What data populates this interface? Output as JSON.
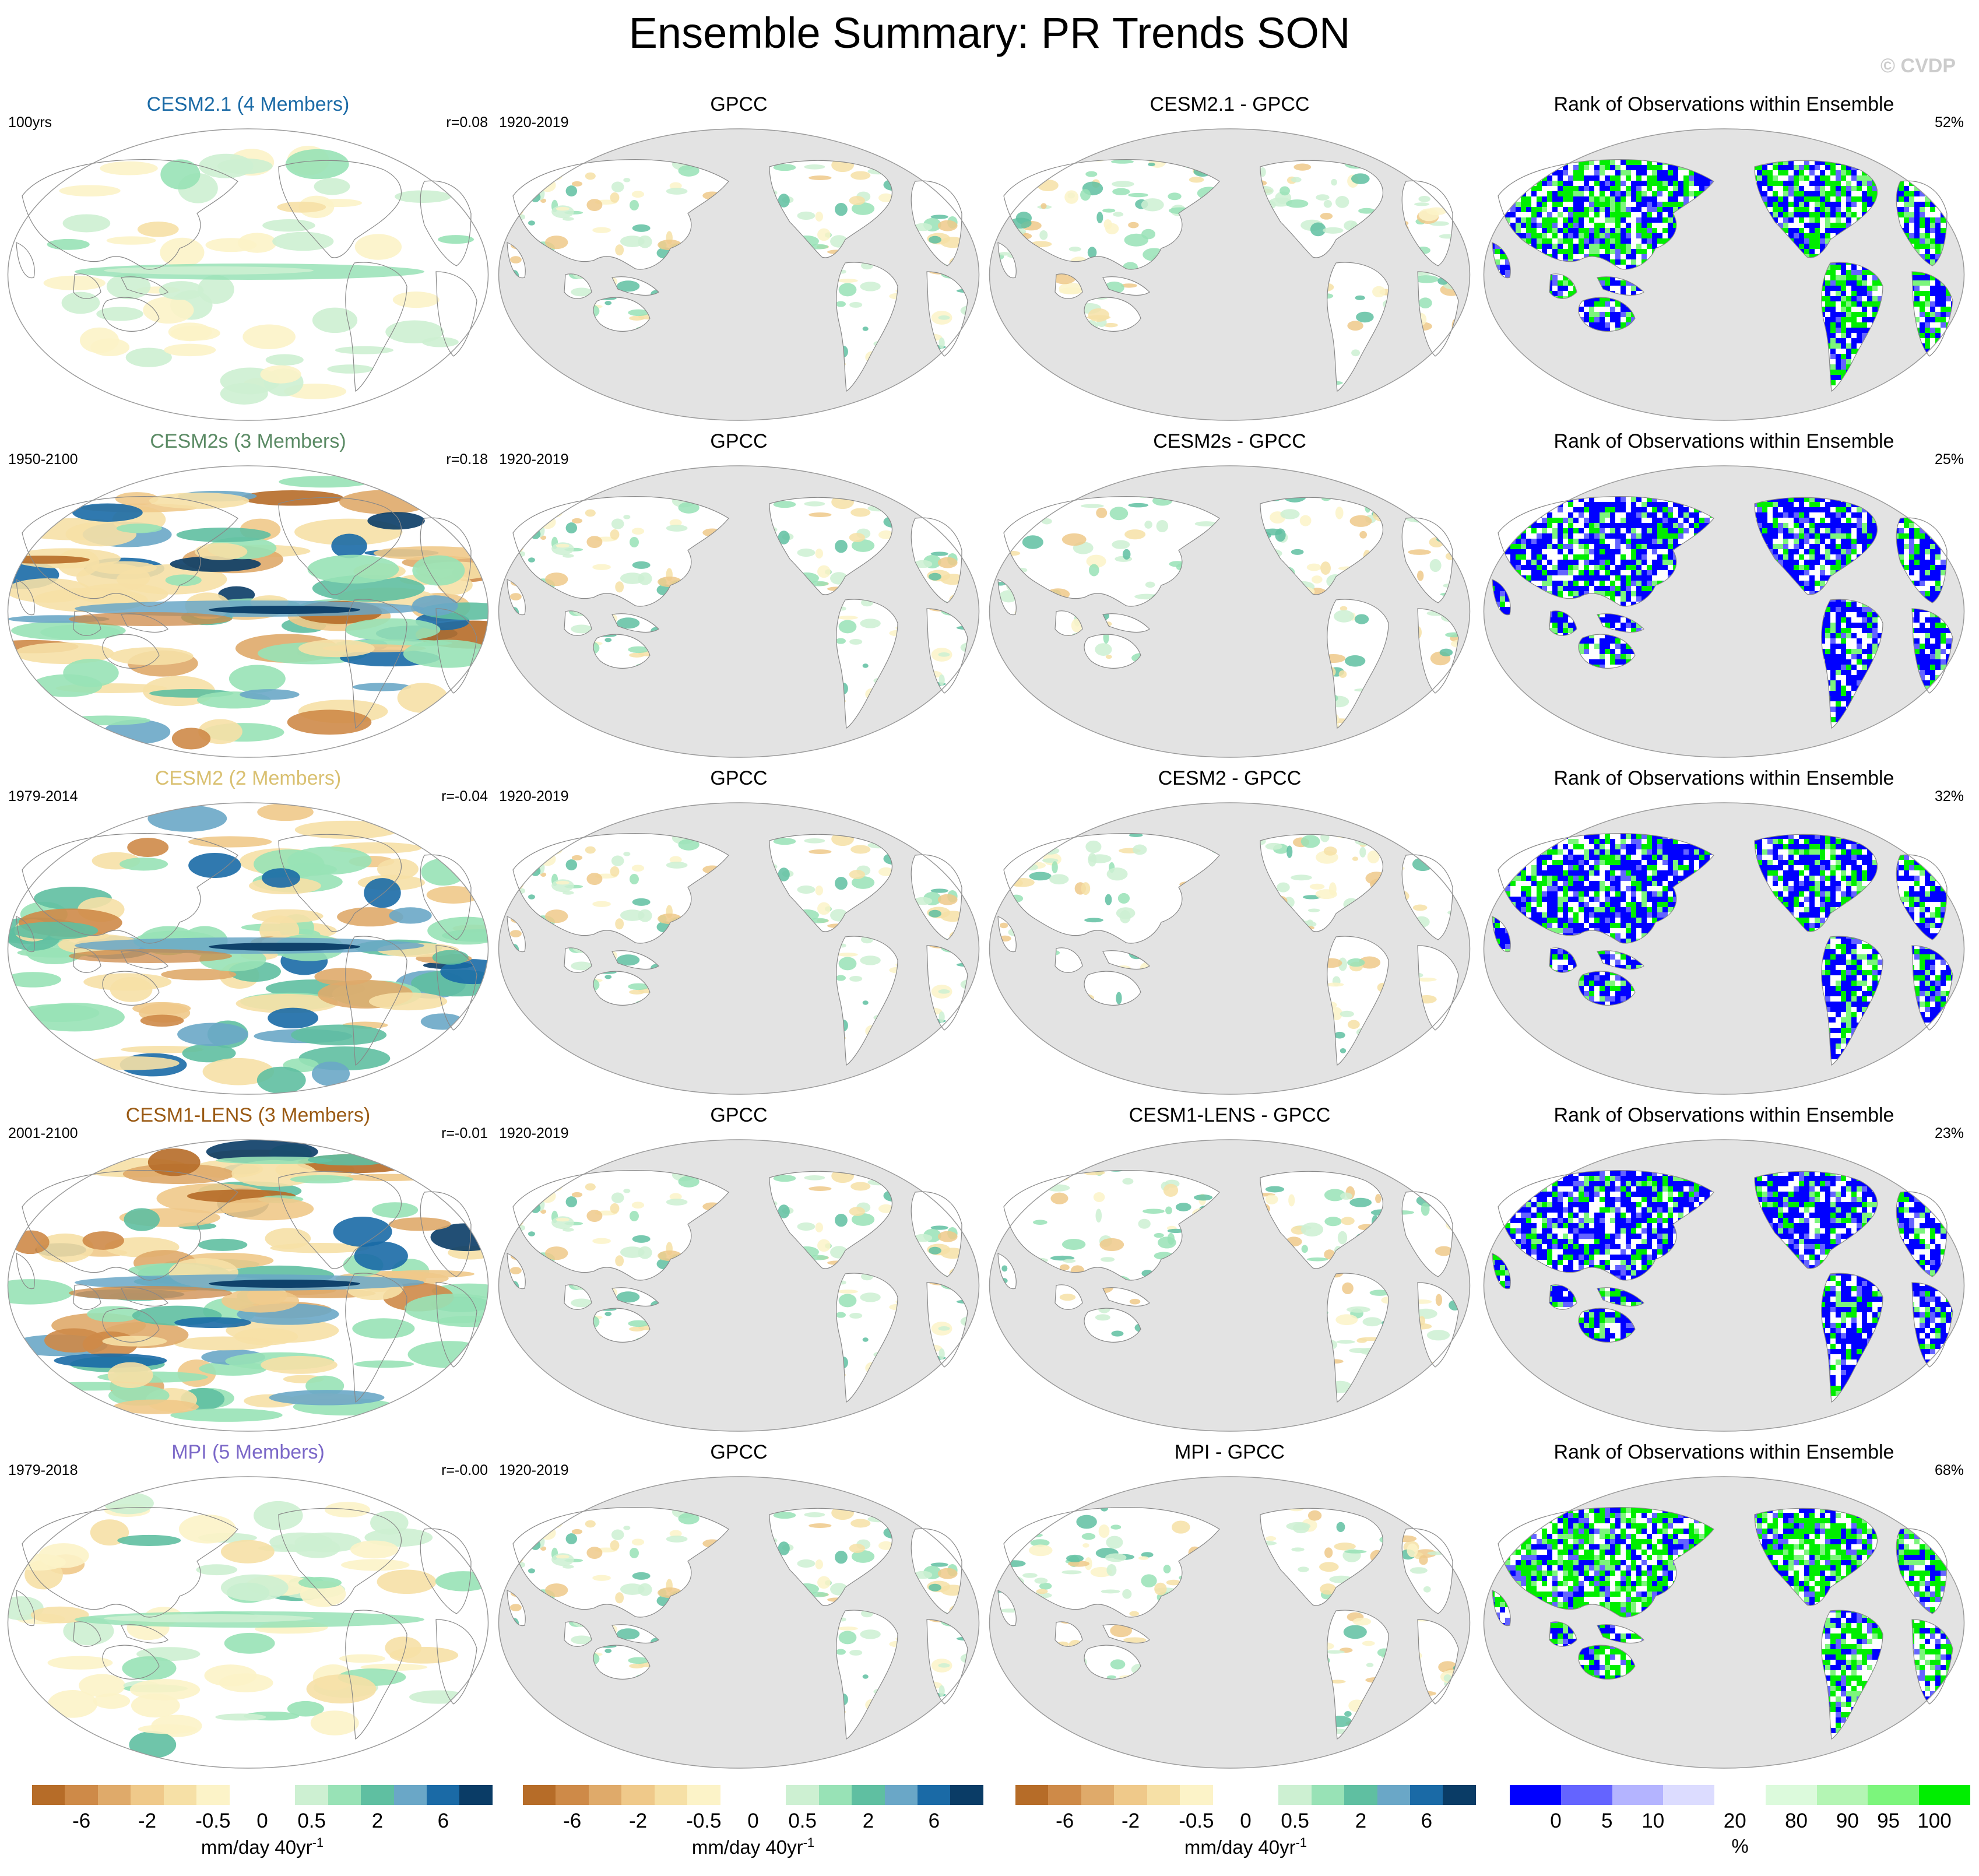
{
  "figure": {
    "title": "Ensemble Summary: PR Trends SON",
    "watermark": "© CVDP"
  },
  "rows": [
    {
      "model": "CESM2.1 (4 Members)",
      "model_color": "#1a6aa6",
      "period": "100yrs",
      "r": "r=0.08",
      "obs": "GPCC",
      "obs_period": "1920-2019",
      "diff": "CESM2.1 - GPCC",
      "rank_title": "Rank of Observations within Ensemble",
      "rank_pct": "52%",
      "intensity": 0.35
    },
    {
      "model": "CESM2s (3 Members)",
      "model_color": "#5a8a64",
      "period": "1950-2100",
      "r": "r=0.18",
      "obs": "GPCC",
      "obs_period": "1920-2019",
      "diff": "CESM2s - GPCC",
      "rank_title": "Rank of Observations within Ensemble",
      "rank_pct": "25%",
      "intensity": 1.0
    },
    {
      "model": "CESM2 (2 Members)",
      "model_color": "#d9c070",
      "period": "1979-2014",
      "r": "r=-0.04",
      "obs": "GPCC",
      "obs_period": "1920-2019",
      "diff": "CESM2 - GPCC",
      "rank_title": "Rank of Observations within Ensemble",
      "rank_pct": "32%",
      "intensity": 0.85
    },
    {
      "model": "CESM1-LENS (3 Members)",
      "model_color": "#9a5a14",
      "period": "2001-2100",
      "r": "r=-0.01",
      "obs": "GPCC",
      "obs_period": "1920-2019",
      "diff": "CESM1-LENS - GPCC",
      "rank_title": "Rank of Observations within Ensemble",
      "rank_pct": "23%",
      "intensity": 1.0
    },
    {
      "model": "MPI (5 Members)",
      "model_color": "#7b68c8",
      "period": "1979-2018",
      "r": "r=-0.00",
      "obs": "GPCC",
      "obs_period": "1920-2019",
      "diff": "MPI - GPCC",
      "rank_title": "Rank of Observations within Ensemble",
      "rank_pct": "68%",
      "intensity": 0.45
    }
  ],
  "chart_data": {
    "type": "heatmap",
    "title": "Ensemble Summary: PR Trends SON",
    "projection": "Robinson (Pacific-centred)",
    "colorbars": {
      "trend": {
        "colors": [
          "#b66c28",
          "#ce8a48",
          "#dfaa6a",
          "#efc98a",
          "#f6e0a6",
          "#fcf3c8",
          "#ffffff",
          "#ffffff",
          "#cdf0d2",
          "#98e2b6",
          "#5fbfa1",
          "#6aa7c7",
          "#1a6aa6",
          "#0a3c66"
        ],
        "labels": [
          "-6",
          "-2",
          "-0.5",
          "0",
          "0.5",
          "2",
          "6"
        ],
        "units": "mm/day 40yr",
        "units_sup": "-1"
      },
      "rank": {
        "colors": [
          "#0000ff",
          "#6464ff",
          "#b4b4ff",
          "#dcdcff",
          "#ffffff",
          "#dcfadc",
          "#b4f5b4",
          "#7cf57c",
          "#00ee00"
        ],
        "labels": [
          "0",
          "5",
          "10",
          "20",
          "80",
          "90",
          "95",
          "100"
        ],
        "units": "%"
      }
    },
    "series": [
      {
        "name": "CESM2.1 (4 Members)",
        "pattern_correlation": 0.08,
        "rank_percent": 52
      },
      {
        "name": "CESM2s (3 Members)",
        "pattern_correlation": 0.18,
        "rank_percent": 25
      },
      {
        "name": "CESM2 (2 Members)",
        "pattern_correlation": -0.04,
        "rank_percent": 32
      },
      {
        "name": "CESM1-LENS (3 Members)",
        "pattern_correlation": -0.01,
        "rank_percent": 23
      },
      {
        "name": "MPI (5 Members)",
        "pattern_correlation": -0.0,
        "rank_percent": 68
      }
    ]
  }
}
